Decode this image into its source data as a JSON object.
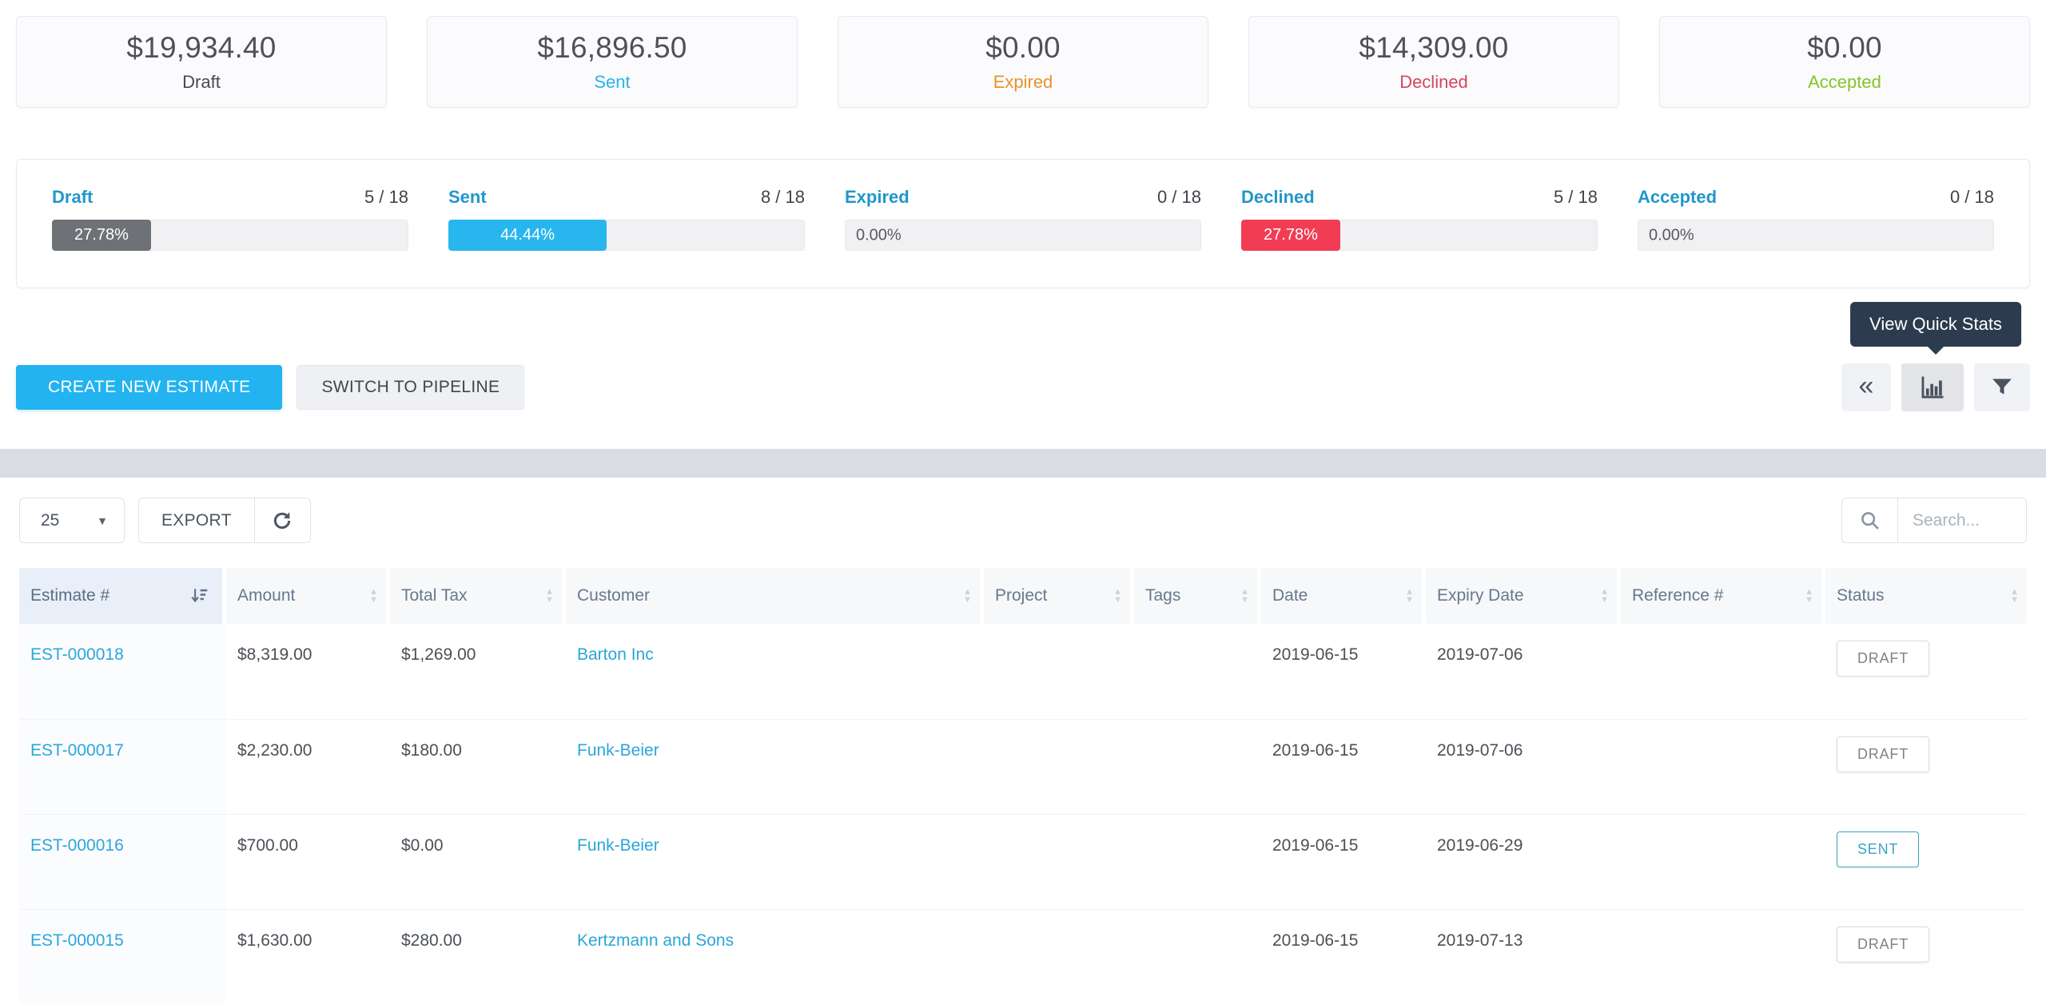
{
  "colors": {
    "accent_blue": "#23b3f0",
    "link_blue": "#2ba6d9",
    "tooltip_bg": "#2c3b4d",
    "divider_band": "#d9dce2"
  },
  "summary_cards": [
    {
      "amount": "$19,934.40",
      "label": "Draft",
      "color": "#454b53"
    },
    {
      "amount": "$16,896.50",
      "label": "Sent",
      "color": "#28b4e8"
    },
    {
      "amount": "$0.00",
      "label": "Expired",
      "color": "#e8912d"
    },
    {
      "amount": "$14,309.00",
      "label": "Declined",
      "color": "#d5465d"
    },
    {
      "amount": "$0.00",
      "label": "Accepted",
      "color": "#84c529"
    }
  ],
  "progress_stats": [
    {
      "label": "Draft",
      "count": "5 / 18",
      "percent": "27.78%",
      "bar_color": "#6e7277"
    },
    {
      "label": "Sent",
      "count": "8 / 18",
      "percent": "44.44%",
      "bar_color": "#28b6ee"
    },
    {
      "label": "Expired",
      "count": "0 / 18",
      "percent": "0.00%",
      "bar_color": ""
    },
    {
      "label": "Declined",
      "count": "5 / 18",
      "percent": "27.78%",
      "bar_color": "#f23c54"
    },
    {
      "label": "Accepted",
      "count": "0 / 18",
      "percent": "0.00%",
      "bar_color": ""
    }
  ],
  "tooltip": {
    "text": "View Quick Stats"
  },
  "actions": {
    "create_label": "CREATE NEW ESTIMATE",
    "switch_label": "SWITCH TO PIPELINE"
  },
  "toolbar": {
    "page_size": "25",
    "export_label": "EXPORT",
    "search_placeholder": "Search..."
  },
  "table": {
    "columns": [
      {
        "label": "Estimate #"
      },
      {
        "label": "Amount"
      },
      {
        "label": "Total Tax"
      },
      {
        "label": "Customer"
      },
      {
        "label": "Project"
      },
      {
        "label": "Tags"
      },
      {
        "label": "Date"
      },
      {
        "label": "Expiry Date"
      },
      {
        "label": "Reference #"
      },
      {
        "label": "Status"
      }
    ],
    "rows": [
      {
        "estimate": "EST-000018",
        "amount": "$8,319.00",
        "total_tax": "$1,269.00",
        "customer": "Barton Inc",
        "project": "",
        "tags": "",
        "date": "2019-06-15",
        "expiry_date": "2019-07-06",
        "reference": "",
        "status": "DRAFT",
        "status_color": "#7d838c",
        "status_border": "#d7dadf"
      },
      {
        "estimate": "EST-000017",
        "amount": "$2,230.00",
        "total_tax": "$180.00",
        "customer": "Funk-Beier",
        "project": "",
        "tags": "",
        "date": "2019-06-15",
        "expiry_date": "2019-07-06",
        "reference": "",
        "status": "DRAFT",
        "status_color": "#7d838c",
        "status_border": "#d7dadf"
      },
      {
        "estimate": "EST-000016",
        "amount": "$700.00",
        "total_tax": "$0.00",
        "customer": "Funk-Beier",
        "project": "",
        "tags": "",
        "date": "2019-06-15",
        "expiry_date": "2019-06-29",
        "reference": "",
        "status": "SENT",
        "status_color": "#3aa4c6",
        "status_border": "#3aa4c6"
      },
      {
        "estimate": "EST-000015",
        "amount": "$1,630.00",
        "total_tax": "$280.00",
        "customer": "Kertzmann and Sons",
        "project": "",
        "tags": "",
        "date": "2019-06-15",
        "expiry_date": "2019-07-13",
        "reference": "",
        "status": "DRAFT",
        "status_color": "#7d838c",
        "status_border": "#d7dadf"
      }
    ]
  }
}
